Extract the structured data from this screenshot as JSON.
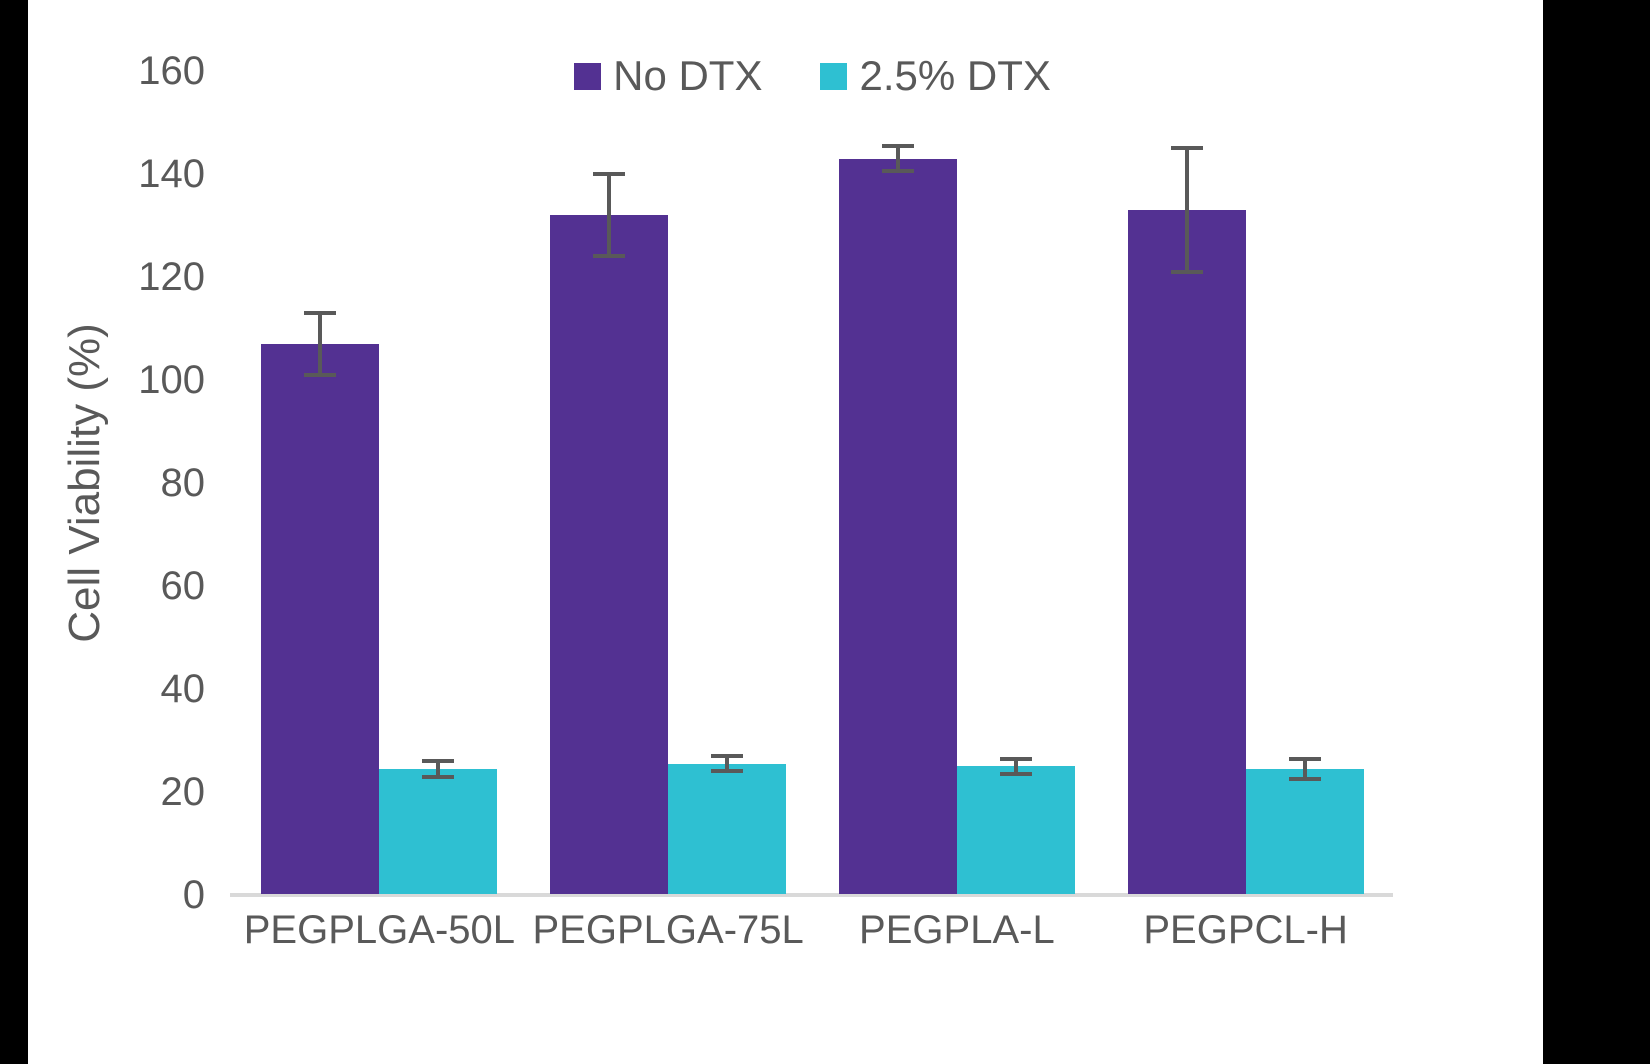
{
  "chart_data": {
    "type": "bar",
    "title": "",
    "ylabel": "Cell Viability (%)",
    "xlabel": "",
    "ylim": [
      0,
      160
    ],
    "yticks": [
      0,
      20,
      40,
      60,
      80,
      100,
      120,
      140,
      160
    ],
    "grid": "off",
    "legend_position": "top-center",
    "categories": [
      "PEGPLGA-50L",
      "PEGPLGA-75L",
      "PEGPLA-L",
      "PEGPCL-H"
    ],
    "series": [
      {
        "name": "No DTX",
        "color": "#533192",
        "values": [
          107,
          132,
          143,
          133
        ],
        "errors": [
          6,
          8,
          2.5,
          12
        ]
      },
      {
        "name": "2.5% DTX",
        "color": "#2EC0D2",
        "values": [
          24.5,
          25.5,
          25,
          24.5
        ],
        "errors": [
          1.5,
          1.5,
          1.5,
          2
        ]
      }
    ],
    "error_bar_color": "#595959",
    "axis_line_color": "#d9d9d9",
    "text_color": "#595959"
  },
  "letterbox_color": "#000000"
}
